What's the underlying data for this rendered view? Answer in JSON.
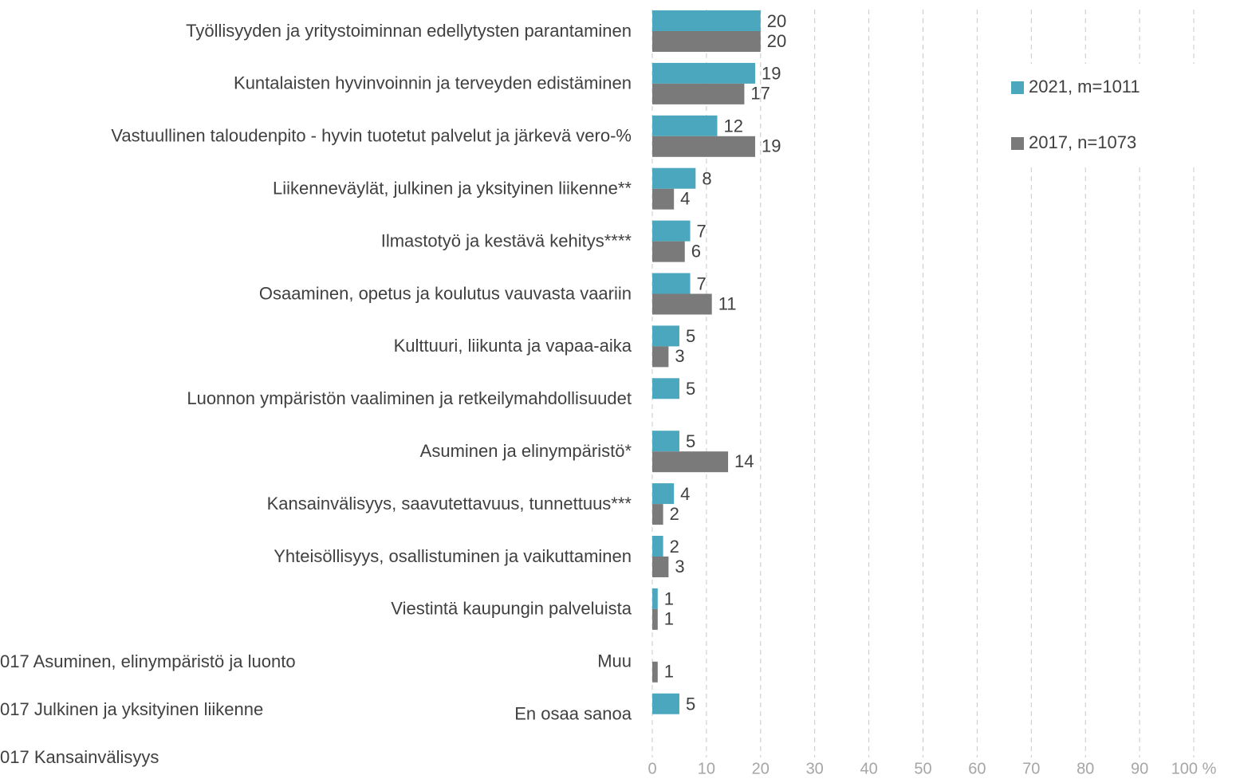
{
  "chart_data": {
    "type": "bar",
    "orientation": "horizontal",
    "categories": [
      "Työllisyyden ja yritystoiminnan edellytysten parantaminen",
      "Kuntalaisten hyvinvoinnin ja terveyden edistäminen",
      "Vastuullinen taloudenpito - hyvin tuotetut palvelut ja järkevä vero-%",
      "Liikenneväylät, julkinen ja yksityinen liikenne**",
      "Ilmastotyö ja kestävä kehitys****",
      "Osaaminen, opetus ja koulutus vauvasta vaariin",
      "Kulttuuri, liikunta ja vapaa-aika",
      "Luonnon ympäristön vaaliminen ja retkeilymahdollisuudet",
      "Asuminen ja elinympäristö*",
      "Kansainvälisyys, saavutettavuus, tunnettuus***",
      "Yhteisöllisyys, osallistuminen ja vaikuttaminen",
      "Viestintä kaupungin palveluista",
      "Muu",
      "En osaa sanoa"
    ],
    "series": [
      {
        "name": "2021, m=1011",
        "color": "#4ba7be",
        "values": [
          20,
          19,
          12,
          8,
          7,
          7,
          5,
          5,
          5,
          4,
          2,
          1,
          null,
          5
        ]
      },
      {
        "name": "2017, n=1073",
        "color": "#7a7a7a",
        "values": [
          20,
          17,
          19,
          4,
          6,
          11,
          3,
          null,
          14,
          2,
          3,
          1,
          1,
          null
        ]
      }
    ],
    "xlim": [
      0,
      100
    ],
    "xticks": [
      0,
      10,
      20,
      30,
      40,
      50,
      60,
      70,
      80,
      90,
      {
        "value": 100,
        "label": "100 %"
      }
    ],
    "grid": true,
    "legend": "right",
    "annotations": [
      "017 Asuminen, elinympäristö ja luonto",
      "017 Julkinen ja yksityinen liikenne",
      "017 Kansainvälisyys"
    ]
  }
}
